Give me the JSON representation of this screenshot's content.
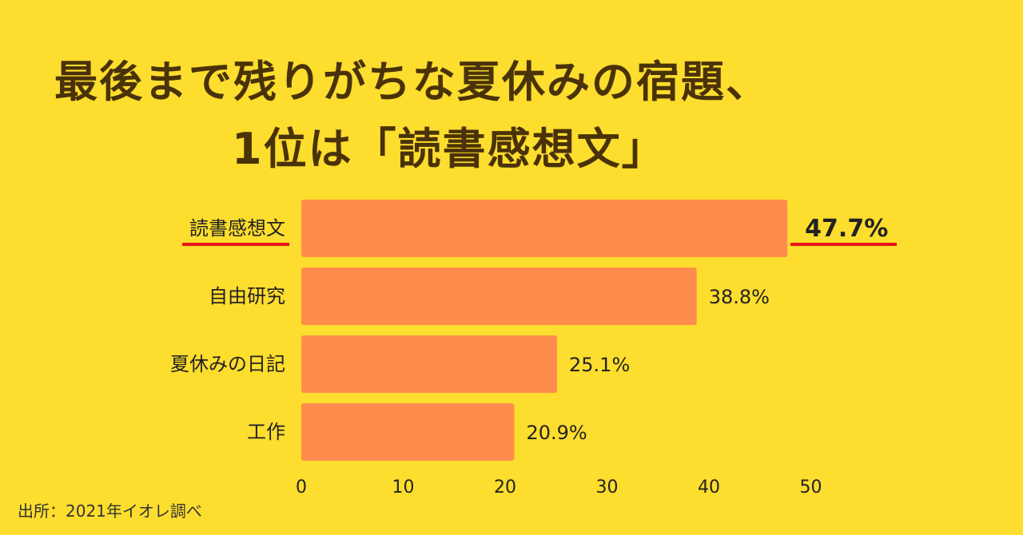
{
  "title_line1": "最後まで残りがちな夏休みの宿題、",
  "title_line2": "1位は「読書感想文」",
  "source": "出所：2021年イオレ調べ",
  "colors": {
    "background": "#FDDD2E",
    "bar": "#FF8C4D",
    "highlight_underline": "#E8121A",
    "title": "#4A3208"
  },
  "chart_data": {
    "type": "bar",
    "orientation": "horizontal",
    "categories": [
      "読書感想文",
      "自由研究",
      "夏休みの日記",
      "工作"
    ],
    "values": [
      47.7,
      38.8,
      25.1,
      20.9
    ],
    "value_labels": [
      "47.7%",
      "38.8%",
      "25.1%",
      "20.9%"
    ],
    "highlight_category": "読書感想文",
    "xlim": [
      0,
      50
    ],
    "xticks": [
      "0",
      "10",
      "20",
      "30",
      "40",
      "50"
    ],
    "grid": false
  }
}
